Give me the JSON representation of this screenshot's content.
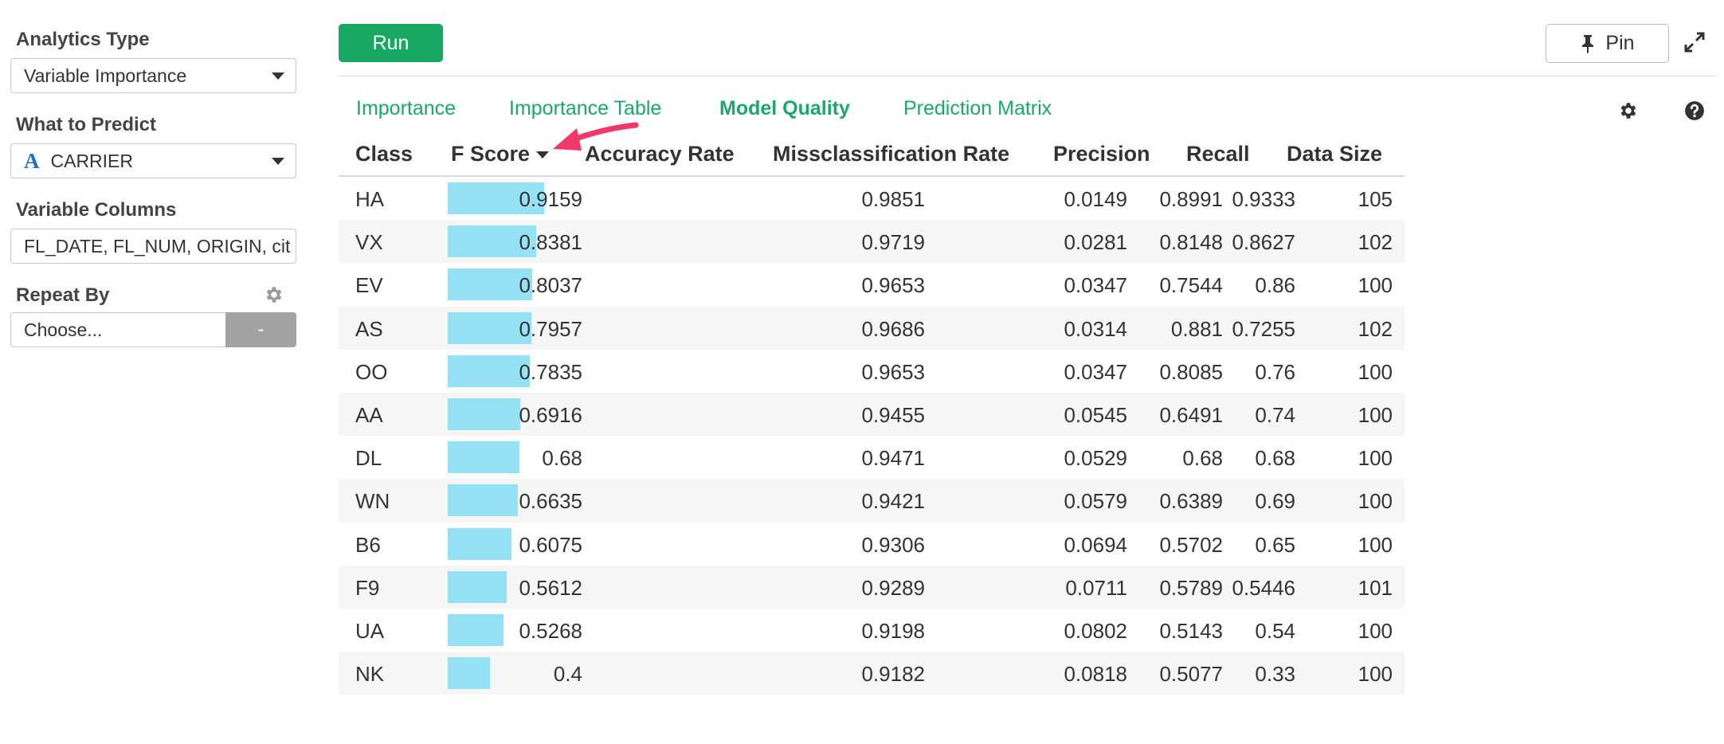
{
  "sidebar": {
    "analytics_type_label": "Analytics Type",
    "analytics_type_value": "Variable Importance",
    "what_to_predict_label": "What to Predict",
    "what_to_predict_type_icon": "A",
    "what_to_predict_value": "CARRIER",
    "variable_columns_label": "Variable Columns",
    "variable_columns_value": "FL_DATE, FL_NUM, ORIGIN, cit",
    "repeat_by_label": "Repeat By",
    "repeat_by_placeholder": "Choose...",
    "repeat_by_button": "-"
  },
  "toolbar": {
    "run_label": "Run",
    "pin_label": "Pin"
  },
  "tabs": [
    {
      "label": "Importance",
      "active": false
    },
    {
      "label": "Importance Table",
      "active": false
    },
    {
      "label": "Model Quality",
      "active": true
    },
    {
      "label": "Prediction Matrix",
      "active": false
    }
  ],
  "colors": {
    "accent": "#1aa86b",
    "run_button": "#18a864",
    "fscore_bar": "#95e2f4",
    "annotation_arrow": "#f0386b"
  },
  "table": {
    "columns": [
      "Class",
      "F Score",
      "Accuracy Rate",
      "Missclassification Rate",
      "Precision",
      "Recall",
      "Data Size"
    ],
    "sorted_column": "F Score",
    "rows": [
      {
        "class": "HA",
        "f_score": "0.9159",
        "accuracy": "0.9851",
        "miss": "0.0149",
        "precision": "0.8991",
        "recall": "0.9333",
        "size": "105",
        "bar": 0.9159
      },
      {
        "class": "VX",
        "f_score": "0.8381",
        "accuracy": "0.9719",
        "miss": "0.0281",
        "precision": "0.8148",
        "recall": "0.8627",
        "size": "102",
        "bar": 0.8381
      },
      {
        "class": "EV",
        "f_score": "0.8037",
        "accuracy": "0.9653",
        "miss": "0.0347",
        "precision": "0.7544",
        "recall": "0.86",
        "size": "100",
        "bar": 0.8037
      },
      {
        "class": "AS",
        "f_score": "0.7957",
        "accuracy": "0.9686",
        "miss": "0.0314",
        "precision": "0.881",
        "recall": "0.7255",
        "size": "102",
        "bar": 0.7957
      },
      {
        "class": "OO",
        "f_score": "0.7835",
        "accuracy": "0.9653",
        "miss": "0.0347",
        "precision": "0.8085",
        "recall": "0.76",
        "size": "100",
        "bar": 0.7835
      },
      {
        "class": "AA",
        "f_score": "0.6916",
        "accuracy": "0.9455",
        "miss": "0.0545",
        "precision": "0.6491",
        "recall": "0.74",
        "size": "100",
        "bar": 0.6916
      },
      {
        "class": "DL",
        "f_score": "0.68",
        "accuracy": "0.9471",
        "miss": "0.0529",
        "precision": "0.68",
        "recall": "0.68",
        "size": "100",
        "bar": 0.68
      },
      {
        "class": "WN",
        "f_score": "0.6635",
        "accuracy": "0.9421",
        "miss": "0.0579",
        "precision": "0.6389",
        "recall": "0.69",
        "size": "100",
        "bar": 0.6635
      },
      {
        "class": "B6",
        "f_score": "0.6075",
        "accuracy": "0.9306",
        "miss": "0.0694",
        "precision": "0.5702",
        "recall": "0.65",
        "size": "100",
        "bar": 0.6075
      },
      {
        "class": "F9",
        "f_score": "0.5612",
        "accuracy": "0.9289",
        "miss": "0.0711",
        "precision": "0.5789",
        "recall": "0.5446",
        "size": "101",
        "bar": 0.5612
      },
      {
        "class": "UA",
        "f_score": "0.5268",
        "accuracy": "0.9198",
        "miss": "0.0802",
        "precision": "0.5143",
        "recall": "0.54",
        "size": "100",
        "bar": 0.5268
      },
      {
        "class": "NK",
        "f_score": "0.4",
        "accuracy": "0.9182",
        "miss": "0.0818",
        "precision": "0.5077",
        "recall": "0.33",
        "size": "100",
        "bar": 0.4
      }
    ]
  }
}
